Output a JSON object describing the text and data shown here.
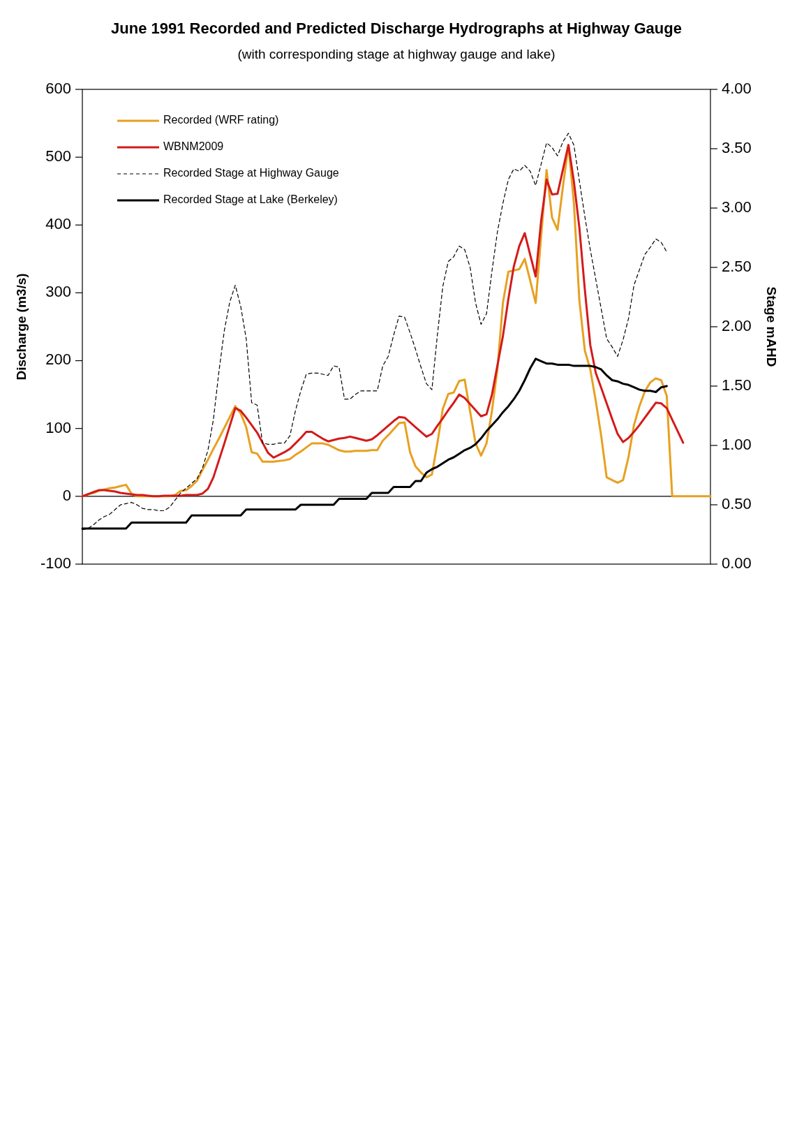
{
  "chart_data": {
    "type": "line",
    "title": "June 1991 Recorded and Predicted Discharge Hydrographs at Highway Gauge",
    "subtitle": "(with corresponding stage at highway gauge and lake)",
    "ylabel": "Discharge (m3/s)",
    "y2label": "Stage mAHD",
    "categories": [
      null,
      null,
      null,
      null,
      null,
      null,
      null,
      null,
      null,
      null,
      null,
      null,
      null,
      null,
      null,
      null,
      null,
      null,
      null,
      null,
      null,
      null,
      null,
      null,
      null,
      null,
      null,
      null,
      null,
      null,
      null,
      null,
      null,
      null,
      null,
      null,
      null,
      null,
      null,
      null,
      null,
      null,
      null,
      null,
      null,
      null,
      null,
      null,
      null,
      null,
      null,
      null,
      null,
      null,
      null,
      null,
      null,
      null,
      null,
      null,
      null,
      null,
      null,
      null,
      null,
      null,
      null,
      null,
      null,
      null,
      null,
      null,
      null,
      null,
      null,
      null,
      null,
      null,
      null,
      null,
      null,
      null,
      null,
      null,
      null,
      null,
      null,
      null,
      null,
      null,
      null,
      null,
      null,
      null,
      null,
      null,
      null,
      null,
      null,
      null,
      null,
      null,
      null,
      null,
      null,
      null,
      null,
      null,
      null,
      null,
      null,
      null,
      null,
      null,
      null,
      null
    ],
    "ylim": [
      -100,
      600
    ],
    "yticks": [
      -100,
      0,
      100,
      200,
      300,
      400,
      500,
      600
    ],
    "y2lim": [
      0,
      4
    ],
    "y2ticks": [
      {
        "value": 0,
        "label": "0.00"
      },
      {
        "value": 0.5,
        "label": "0.50"
      },
      {
        "value": 1,
        "label": "1.00"
      },
      {
        "value": 1.5,
        "label": "1.50"
      },
      {
        "value": 2,
        "label": "2.00"
      },
      {
        "value": 2.5,
        "label": "2.50"
      },
      {
        "value": 3,
        "label": "3.00"
      },
      {
        "value": 3.5,
        "label": "3.50"
      },
      {
        "value": 4,
        "label": "4.00"
      }
    ],
    "ref_lines": [
      {
        "axis": "y",
        "value": 0,
        "label": null
      }
    ],
    "legend": "top left",
    "marker": "none",
    "series": [
      {
        "name": "Recorded (WRF rating)",
        "color": "#e8a020",
        "line_style": "solid",
        "values": [
          0,
          3,
          5,
          8,
          10,
          12,
          13,
          15,
          17,
          4,
          0,
          0,
          0,
          0,
          0,
          0,
          0,
          2,
          8,
          9,
          15,
          23,
          39,
          54,
          70,
          85,
          101,
          117,
          133,
          122,
          102,
          65,
          63,
          51,
          51,
          51,
          52,
          53,
          55,
          61,
          66,
          72,
          78,
          78,
          78,
          76,
          72,
          68,
          66,
          66,
          67,
          67,
          67,
          68,
          68,
          82,
          90,
          99,
          108,
          109,
          65,
          44,
          35,
          28,
          32,
          78,
          129,
          151,
          153,
          170,
          172,
          125,
          78,
          60,
          78,
          126,
          188,
          285,
          331,
          333,
          335,
          350,
          318,
          285,
          383,
          481,
          411,
          393,
          457,
          518,
          432,
          289,
          215,
          187,
          141,
          89,
          28,
          24,
          20,
          24,
          58,
          105,
          133,
          155,
          168,
          174,
          171,
          148,
          0,
          0,
          0,
          0,
          0,
          0,
          0,
          0
        ]
      },
      {
        "name": "WBNM2009",
        "color": "#d41a1a",
        "line_style": "solid",
        "values": [
          0,
          3,
          6,
          9,
          9,
          8,
          7,
          5,
          4,
          3,
          2,
          2,
          1,
          0,
          0,
          1,
          1,
          1,
          1,
          2,
          2,
          2,
          4,
          11,
          28,
          53,
          78,
          104,
          130,
          126,
          116,
          105,
          94,
          79,
          64,
          57,
          61,
          65,
          70,
          78,
          86,
          95,
          95,
          90,
          85,
          81,
          83,
          85,
          86,
          88,
          86,
          84,
          82,
          84,
          90,
          97,
          104,
          111,
          117,
          116,
          109,
          102,
          95,
          88,
          92,
          104,
          115,
          127,
          138,
          150,
          145,
          136,
          127,
          118,
          121,
          150,
          193,
          236,
          291,
          339,
          369,
          388,
          356,
          324,
          406,
          467,
          445,
          446,
          482,
          518,
          464,
          396,
          305,
          223,
          182,
          160,
          137,
          114,
          92,
          80,
          86,
          95,
          105,
          116,
          127,
          138,
          137,
          130,
          113,
          96,
          79,
          null,
          null,
          null,
          null,
          null
        ]
      },
      {
        "name": "Recorded Stage at Highway Gauge",
        "color": "#000000",
        "line_style": "dashed",
        "axis": "y2",
        "values": [
          0.29,
          0.3,
          0.33,
          0.37,
          0.4,
          0.42,
          0.46,
          0.5,
          0.51,
          0.52,
          0.5,
          0.47,
          0.46,
          0.46,
          0.45,
          0.45,
          0.48,
          0.54,
          0.6,
          0.64,
          0.68,
          0.72,
          0.81,
          0.96,
          1.22,
          1.62,
          1.97,
          2.21,
          2.35,
          2.17,
          1.9,
          1.36,
          1.34,
          1.02,
          1.01,
          1.01,
          1.02,
          1.02,
          1.08,
          1.29,
          1.46,
          1.6,
          1.61,
          1.61,
          1.6,
          1.59,
          1.67,
          1.66,
          1.39,
          1.39,
          1.43,
          1.46,
          1.46,
          1.46,
          1.46,
          1.67,
          1.75,
          1.93,
          2.09,
          2.08,
          1.95,
          1.81,
          1.66,
          1.52,
          1.47,
          1.93,
          2.34,
          2.55,
          2.59,
          2.68,
          2.65,
          2.5,
          2.2,
          2.02,
          2.11,
          2.47,
          2.8,
          3.04,
          3.24,
          3.33,
          3.31,
          3.36,
          3.31,
          3.19,
          3.37,
          3.55,
          3.51,
          3.44,
          3.56,
          3.63,
          3.53,
          3.23,
          2.93,
          2.65,
          2.4,
          2.15,
          1.9,
          1.83,
          1.75,
          1.89,
          2.07,
          2.35,
          2.48,
          2.61,
          2.67,
          2.74,
          2.71,
          2.63,
          null,
          null,
          null,
          null,
          null,
          null,
          null,
          null
        ]
      },
      {
        "name": "Recorded Stage at Lake (Berkeley)",
        "color": "#000000",
        "line_style": "solid",
        "axis": "y2",
        "values": [
          0.3,
          0.3,
          0.3,
          0.3,
          0.3,
          0.3,
          0.3,
          0.3,
          0.3,
          0.35,
          0.35,
          0.35,
          0.35,
          0.35,
          0.35,
          0.35,
          0.35,
          0.35,
          0.35,
          0.35,
          0.41,
          0.41,
          0.41,
          0.41,
          0.41,
          0.41,
          0.41,
          0.41,
          0.41,
          0.41,
          0.46,
          0.46,
          0.46,
          0.46,
          0.46,
          0.46,
          0.46,
          0.46,
          0.46,
          0.46,
          0.5,
          0.5,
          0.5,
          0.5,
          0.5,
          0.5,
          0.5,
          0.55,
          0.55,
          0.55,
          0.55,
          0.55,
          0.55,
          0.6,
          0.6,
          0.6,
          0.6,
          0.65,
          0.65,
          0.65,
          0.65,
          0.7,
          0.7,
          0.77,
          0.8,
          0.82,
          0.85,
          0.88,
          0.9,
          0.93,
          0.96,
          0.98,
          1.01,
          1.06,
          1.12,
          1.17,
          1.22,
          1.28,
          1.33,
          1.39,
          1.46,
          1.55,
          1.65,
          1.73,
          1.71,
          1.69,
          1.69,
          1.68,
          1.68,
          1.68,
          1.67,
          1.67,
          1.67,
          1.67,
          1.66,
          1.64,
          1.59,
          1.55,
          1.54,
          1.52,
          1.51,
          1.49,
          1.47,
          1.46,
          1.46,
          1.45,
          1.49,
          1.5,
          null,
          null,
          null,
          null,
          null,
          null,
          null,
          null
        ]
      }
    ]
  }
}
